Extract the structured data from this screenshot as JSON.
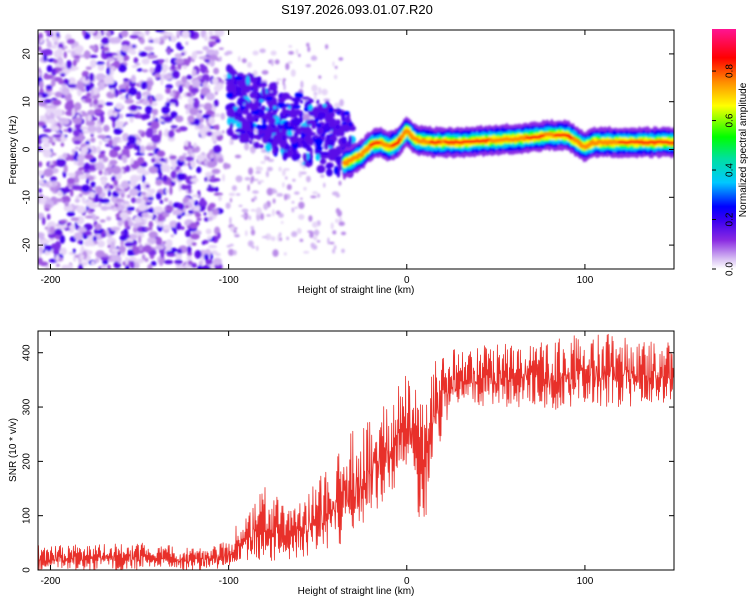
{
  "title": "S197.2026.093.01.07.R20",
  "chart_data": [
    {
      "type": "heatmap",
      "title": "S197.2026.093.01.07.R20",
      "xlabel": "Height of straight line (km)",
      "ylabel": "Frequency (Hz)",
      "xlim": [
        -207,
        150
      ],
      "ylim": [
        -25,
        25
      ],
      "xticks": [
        -200,
        -100,
        0,
        100
      ],
      "yticks": [
        -20,
        -10,
        0,
        10,
        20
      ],
      "colorbar": {
        "label": "Normalized spectral amplitude",
        "range": [
          0.0,
          0.97
        ],
        "ticks": [
          0.0,
          0.2,
          0.4,
          0.6,
          0.8
        ],
        "colormap": [
          "#ffffff",
          "#d9c2f3",
          "#8a2be2",
          "#3d00f0",
          "#0000ff",
          "#00c8ff",
          "#00e0a0",
          "#00ff00",
          "#ffff00",
          "#ff8c00",
          "#ff0000",
          "#ff1493"
        ]
      },
      "ridge": {
        "description": "dominant frequency ridge",
        "x": [
          -35,
          -30,
          -25,
          -20,
          -15,
          -10,
          -5,
          0,
          5,
          15,
          30,
          50,
          70,
          80,
          90,
          100,
          105,
          120,
          150
        ],
        "y": [
          -3,
          -2,
          -1,
          1,
          1.5,
          0.5,
          1.5,
          4,
          2,
          1.5,
          1.5,
          2,
          2.5,
          3,
          3,
          0.5,
          1.5,
          1.5,
          1.5
        ]
      },
      "noise_region": {
        "x": [
          -207,
          -105
        ],
        "density": "high"
      }
    },
    {
      "type": "line",
      "xlabel": "Height of straight line (km)",
      "ylabel": "SNR (10 * v/v)",
      "xlim": [
        -207,
        150
      ],
      "ylim": [
        0,
        440
      ],
      "xticks": [
        -200,
        -100,
        0,
        100
      ],
      "yticks": [
        0,
        100,
        200,
        300,
        400
      ],
      "series": [
        {
          "name": "SNR",
          "color": "#e8302a",
          "envelope": {
            "x": [
              -207,
              -150,
              -110,
              -100,
              -90,
              -80,
              -70,
              -60,
              -50,
              -40,
              -30,
              -20,
              -10,
              0,
              5,
              10,
              15,
              20,
              30,
              50,
              70,
              90,
              110,
              130,
              150
            ],
            "low": [
              0,
              0,
              0,
              5,
              10,
              15,
              15,
              20,
              30,
              40,
              60,
              100,
              140,
              180,
              120,
              60,
              200,
              250,
              300,
              300,
              300,
              290,
              300,
              300,
              310
            ],
            "high": [
              45,
              50,
              40,
              60,
              110,
              170,
              120,
              130,
              170,
              210,
              260,
              280,
              320,
              370,
              340,
              300,
              380,
              400,
              410,
              415,
              420,
              430,
              440,
              420,
              420
            ]
          }
        }
      ]
    }
  ]
}
